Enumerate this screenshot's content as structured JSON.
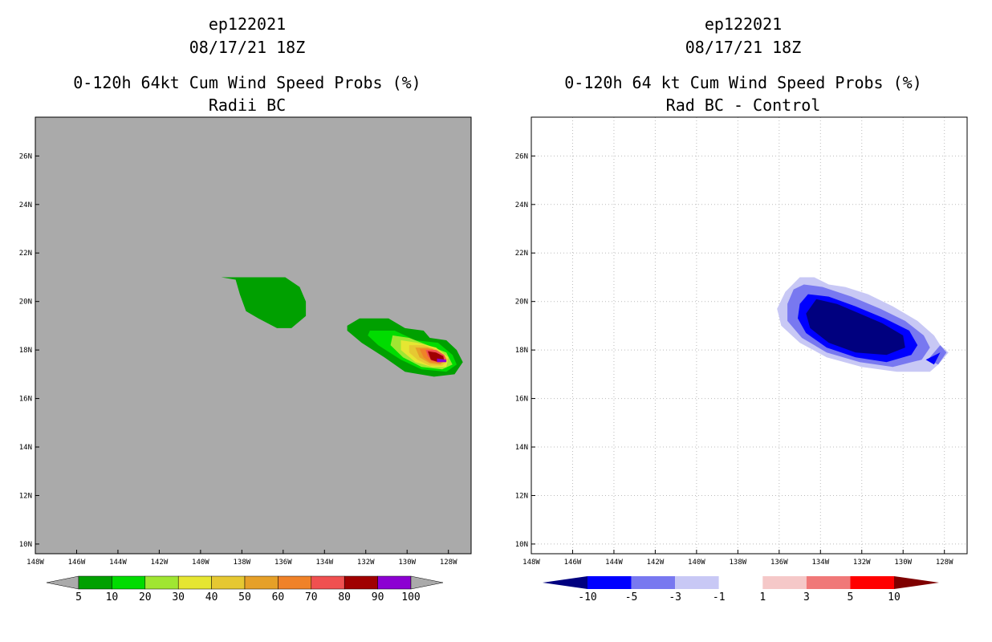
{
  "chart_data": [
    {
      "type": "heatmap",
      "title_lines": [
        "ep122021",
        "08/17/21 18Z",
        "0-120h 64kt Cum Wind Speed Probs (%)",
        "Radii BC"
      ],
      "x_ticks": [
        "148W",
        "146W",
        "144W",
        "142W",
        "140W",
        "138W",
        "136W",
        "134W",
        "132W",
        "130W",
        "128W"
      ],
      "y_ticks": [
        "10N",
        "12N",
        "14N",
        "16N",
        "18N",
        "20N",
        "22N",
        "24N",
        "26N"
      ],
      "xlim_lon": [
        -148.0,
        -126.9
      ],
      "ylim_lat": [
        9.6,
        27.6
      ],
      "grid": false,
      "background_color": "#aaaaaa",
      "colorbar": {
        "labels": [
          "5",
          "10",
          "20",
          "30",
          "40",
          "50",
          "60",
          "70",
          "80",
          "90",
          "100"
        ],
        "colors": [
          "#00a000",
          "#00dc00",
          "#a0e632",
          "#e6e632",
          "#e6c832",
          "#e6a028",
          "#f08228",
          "#f05050",
          "#a00000",
          "#8c00d2"
        ]
      },
      "contours": [
        {
          "level": 5,
          "color": "#00a000",
          "points": [
            [
              -138.9,
              21.0
            ],
            [
              -135.9,
              21.0
            ],
            [
              -135.2,
              20.6
            ],
            [
              -134.9,
              20.0
            ],
            [
              -134.9,
              19.4
            ],
            [
              -135.6,
              18.9
            ],
            [
              -136.3,
              18.9
            ],
            [
              -137.2,
              19.3
            ],
            [
              -137.8,
              19.6
            ],
            [
              -138.1,
              20.3
            ],
            [
              -138.3,
              20.9
            ],
            [
              -139.0,
              21.0
            ]
          ]
        },
        {
          "level": 5,
          "color": "#00a000",
          "points": [
            [
              -132.9,
              19.0
            ],
            [
              -132.3,
              19.3
            ],
            [
              -130.9,
              19.3
            ],
            [
              -130.1,
              18.9
            ],
            [
              -129.2,
              18.8
            ],
            [
              -128.9,
              18.5
            ],
            [
              -128.1,
              18.4
            ],
            [
              -127.6,
              18.0
            ],
            [
              -127.3,
              17.5
            ],
            [
              -127.7,
              17.0
            ],
            [
              -128.7,
              16.9
            ],
            [
              -130.1,
              17.1
            ],
            [
              -131.1,
              17.7
            ],
            [
              -132.2,
              18.3
            ],
            [
              -132.9,
              18.8
            ]
          ]
        },
        {
          "level": 10,
          "color": "#00dc00",
          "points": [
            [
              -131.8,
              18.8
            ],
            [
              -130.6,
              18.8
            ],
            [
              -129.6,
              18.4
            ],
            [
              -128.5,
              18.3
            ],
            [
              -127.8,
              17.8
            ],
            [
              -127.6,
              17.4
            ],
            [
              -128.1,
              17.1
            ],
            [
              -129.3,
              17.2
            ],
            [
              -130.3,
              17.6
            ],
            [
              -131.4,
              18.2
            ],
            [
              -131.9,
              18.6
            ]
          ]
        },
        {
          "level": 20,
          "color": "#a0e632",
          "points": [
            [
              -130.7,
              18.6
            ],
            [
              -129.9,
              18.5
            ],
            [
              -129.0,
              18.2
            ],
            [
              -128.1,
              17.9
            ],
            [
              -127.8,
              17.4
            ],
            [
              -128.3,
              17.2
            ],
            [
              -129.3,
              17.3
            ],
            [
              -130.2,
              17.7
            ],
            [
              -130.8,
              18.2
            ]
          ]
        },
        {
          "level": 30,
          "color": "#e6e632",
          "points": [
            [
              -130.3,
              18.4
            ],
            [
              -129.5,
              18.3
            ],
            [
              -128.6,
              18.1
            ],
            [
              -128.0,
              17.7
            ],
            [
              -128.1,
              17.3
            ],
            [
              -128.8,
              17.3
            ],
            [
              -129.6,
              17.5
            ],
            [
              -130.3,
              18.0
            ]
          ]
        },
        {
          "level": 40,
          "color": "#e6c832",
          "points": [
            [
              -129.9,
              18.2
            ],
            [
              -129.2,
              18.2
            ],
            [
              -128.5,
              18.0
            ],
            [
              -128.0,
              17.6
            ],
            [
              -128.3,
              17.35
            ],
            [
              -128.9,
              17.35
            ],
            [
              -129.5,
              17.6
            ],
            [
              -129.9,
              17.9
            ]
          ]
        },
        {
          "level": 50,
          "color": "#e6a028",
          "points": [
            [
              -129.6,
              18.1
            ],
            [
              -129.0,
              18.1
            ],
            [
              -128.4,
              17.9
            ],
            [
              -128.1,
              17.6
            ],
            [
              -128.4,
              17.4
            ],
            [
              -128.9,
              17.45
            ],
            [
              -129.4,
              17.7
            ]
          ]
        },
        {
          "level": 60,
          "color": "#f08228",
          "points": [
            [
              -129.4,
              18.05
            ],
            [
              -128.8,
              18.05
            ],
            [
              -128.3,
              17.85
            ],
            [
              -128.1,
              17.6
            ],
            [
              -128.4,
              17.45
            ],
            [
              -128.9,
              17.5
            ],
            [
              -129.2,
              17.7
            ]
          ]
        },
        {
          "level": 70,
          "color": "#f05050",
          "points": [
            [
              -129.1,
              18.0
            ],
            [
              -128.6,
              18.0
            ],
            [
              -128.2,
              17.8
            ],
            [
              -128.1,
              17.6
            ],
            [
              -128.4,
              17.5
            ],
            [
              -128.8,
              17.55
            ],
            [
              -129.0,
              17.75
            ]
          ]
        },
        {
          "level": 80,
          "color": "#a00000",
          "points": [
            [
              -129.0,
              17.95
            ],
            [
              -128.6,
              17.9
            ],
            [
              -128.25,
              17.75
            ],
            [
              -128.2,
              17.55
            ],
            [
              -128.5,
              17.5
            ],
            [
              -128.85,
              17.6
            ]
          ]
        },
        {
          "level": 90,
          "color": "#8c00d2",
          "points": [
            [
              -128.55,
              17.65
            ],
            [
              -128.1,
              17.6
            ],
            [
              -128.1,
              17.5
            ],
            [
              -128.55,
              17.5
            ]
          ]
        }
      ]
    },
    {
      "type": "heatmap",
      "title_lines": [
        "ep122021",
        "08/17/21 18Z",
        "0-120h 64 kt Cum Wind Speed Probs (%)",
        "Rad BC - Control"
      ],
      "x_ticks": [
        "148W",
        "146W",
        "144W",
        "142W",
        "140W",
        "138W",
        "136W",
        "134W",
        "132W",
        "130W",
        "128W"
      ],
      "y_ticks": [
        "10N",
        "12N",
        "14N",
        "16N",
        "18N",
        "20N",
        "22N",
        "24N",
        "26N"
      ],
      "xlim_lon": [
        -148.0,
        -126.9
      ],
      "ylim_lat": [
        9.6,
        27.6
      ],
      "grid": true,
      "background_color": "#ffffff",
      "colorbar": {
        "labels": [
          "-10",
          "-5",
          "-3",
          "-1",
          "1",
          "3",
          "5",
          "10"
        ],
        "colors": [
          "#00007f",
          "#0000ff",
          "#7878f0",
          "#c8c8f5",
          "#ffffff",
          "#f5c8c8",
          "#f07878",
          "#ff0000",
          "#7f0000"
        ]
      },
      "contours": [
        {
          "level": -1,
          "color": "#c8c8f5",
          "points": [
            [
              -135.0,
              21.0
            ],
            [
              -134.3,
              21.0
            ],
            [
              -133.6,
              20.7
            ],
            [
              -132.8,
              20.6
            ],
            [
              -131.7,
              20.3
            ],
            [
              -130.5,
              19.8
            ],
            [
              -129.3,
              19.2
            ],
            [
              -128.5,
              18.6
            ],
            [
              -128.2,
              18.2
            ],
            [
              -127.8,
              17.9
            ],
            [
              -128.3,
              17.4
            ],
            [
              -128.7,
              17.1
            ],
            [
              -130.3,
              17.1
            ],
            [
              -132.0,
              17.3
            ],
            [
              -133.7,
              17.7
            ],
            [
              -135.0,
              18.3
            ],
            [
              -135.9,
              19.0
            ],
            [
              -136.1,
              19.7
            ],
            [
              -135.7,
              20.4
            ]
          ]
        },
        {
          "level": -3,
          "color": "#7878f0",
          "points": [
            [
              -134.8,
              20.7
            ],
            [
              -133.9,
              20.6
            ],
            [
              -132.5,
              20.2
            ],
            [
              -131.1,
              19.7
            ],
            [
              -129.9,
              19.2
            ],
            [
              -129.0,
              18.6
            ],
            [
              -128.7,
              18.1
            ],
            [
              -129.1,
              17.6
            ],
            [
              -130.5,
              17.3
            ],
            [
              -132.1,
              17.5
            ],
            [
              -133.7,
              17.9
            ],
            [
              -134.9,
              18.5
            ],
            [
              -135.6,
              19.2
            ],
            [
              -135.6,
              19.9
            ],
            [
              -135.3,
              20.5
            ]
          ]
        },
        {
          "level": -5,
          "color": "#0000ff",
          "points": [
            [
              -134.6,
              20.3
            ],
            [
              -133.6,
              20.2
            ],
            [
              -132.3,
              19.8
            ],
            [
              -130.9,
              19.3
            ],
            [
              -129.7,
              18.8
            ],
            [
              -129.3,
              18.2
            ],
            [
              -129.6,
              17.8
            ],
            [
              -130.8,
              17.5
            ],
            [
              -132.3,
              17.7
            ],
            [
              -133.7,
              18.1
            ],
            [
              -134.7,
              18.7
            ],
            [
              -135.1,
              19.3
            ],
            [
              -135.0,
              19.9
            ]
          ]
        },
        {
          "level": -10,
          "color": "#00007f",
          "points": [
            [
              -134.2,
              20.1
            ],
            [
              -133.2,
              19.9
            ],
            [
              -132.1,
              19.5
            ],
            [
              -131.0,
              19.1
            ],
            [
              -130.0,
              18.6
            ],
            [
              -129.9,
              18.1
            ],
            [
              -130.8,
              17.8
            ],
            [
              -132.3,
              17.9
            ],
            [
              -133.6,
              18.3
            ],
            [
              -134.5,
              18.9
            ],
            [
              -134.7,
              19.5
            ]
          ]
        },
        {
          "level": -3,
          "color": "#7878f0",
          "points": [
            [
              -128.2,
              18.2
            ],
            [
              -127.9,
              17.9
            ],
            [
              -128.3,
              17.4
            ],
            [
              -128.8,
              17.6
            ]
          ]
        },
        {
          "level": -5,
          "color": "#0000ff",
          "points": [
            [
              -128.2,
              17.9
            ],
            [
              -128.5,
              17.4
            ],
            [
              -128.9,
              17.6
            ]
          ]
        }
      ]
    }
  ]
}
